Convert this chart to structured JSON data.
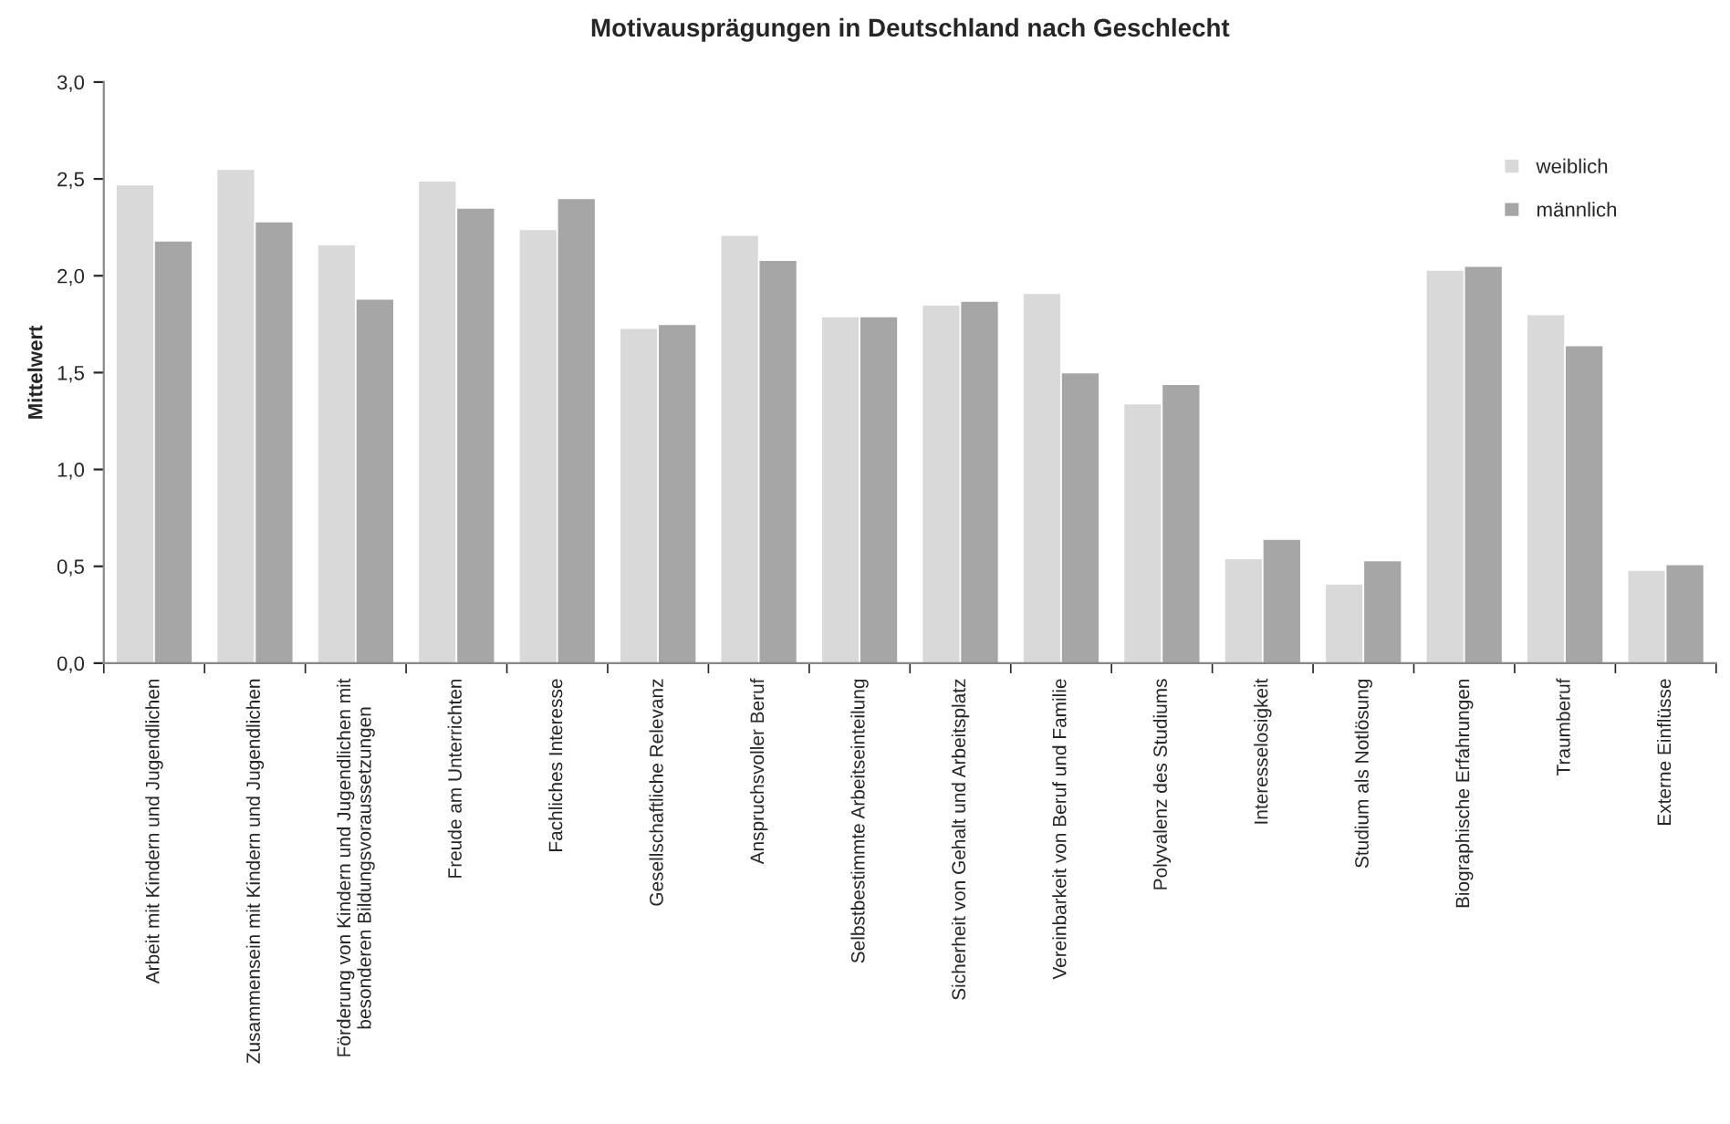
{
  "chart_data": {
    "type": "bar",
    "title": "Motivausprägungen in Deutschland nach Geschlecht",
    "ylabel": "Mittelwert",
    "categories": [
      "Arbeit mit Kindern und Jugendlichen",
      "Zusammensein mit Kindern und Jugendlichen",
      "Förderung von Kindern und Jugendlichen mit\nbesonderen Bildungsvoraussetzungen",
      "Freude am Unterrichten",
      "Fachliches Interesse",
      "Gesellschaftliche Relevanz",
      "Anspruchsvoller Beruf",
      "Selbstbestimmte Arbeitseinteilung",
      "Sicherheit von Gehalt und Arbeitsplatz",
      "Vereinbarkeit von Beruf und Familie",
      "Polyvalenz des Studiums",
      "Interesselosigkeit",
      "Studium als Notlösung",
      "Biographische Erfahrungen",
      "Traumberuf",
      "Externe Einflüsse"
    ],
    "series": [
      {
        "name": "weiblich",
        "color": "#d9d9d9",
        "values": [
          2.47,
          2.55,
          2.16,
          2.49,
          2.24,
          1.73,
          2.21,
          1.79,
          1.85,
          1.91,
          1.34,
          0.54,
          0.41,
          2.03,
          1.8,
          0.48
        ]
      },
      {
        "name": "männlich",
        "color": "#a6a6a6",
        "values": [
          2.18,
          2.28,
          1.88,
          2.35,
          2.4,
          1.75,
          2.08,
          1.79,
          1.87,
          1.5,
          1.44,
          0.64,
          0.53,
          2.05,
          1.64,
          0.51
        ]
      }
    ],
    "ylim": [
      0,
      3.0
    ],
    "yticks": [
      {
        "value": 0,
        "label": "0,0"
      },
      {
        "value": 0.5,
        "label": "0,5"
      },
      {
        "value": 1.0,
        "label": "1,0"
      },
      {
        "value": 1.5,
        "label": "1,5"
      },
      {
        "value": 2.0,
        "label": "2,0"
      },
      {
        "value": 2.5,
        "label": "2,5"
      },
      {
        "value": 3.0,
        "label": "3,0"
      }
    ],
    "grid": false,
    "legend": "top right"
  }
}
